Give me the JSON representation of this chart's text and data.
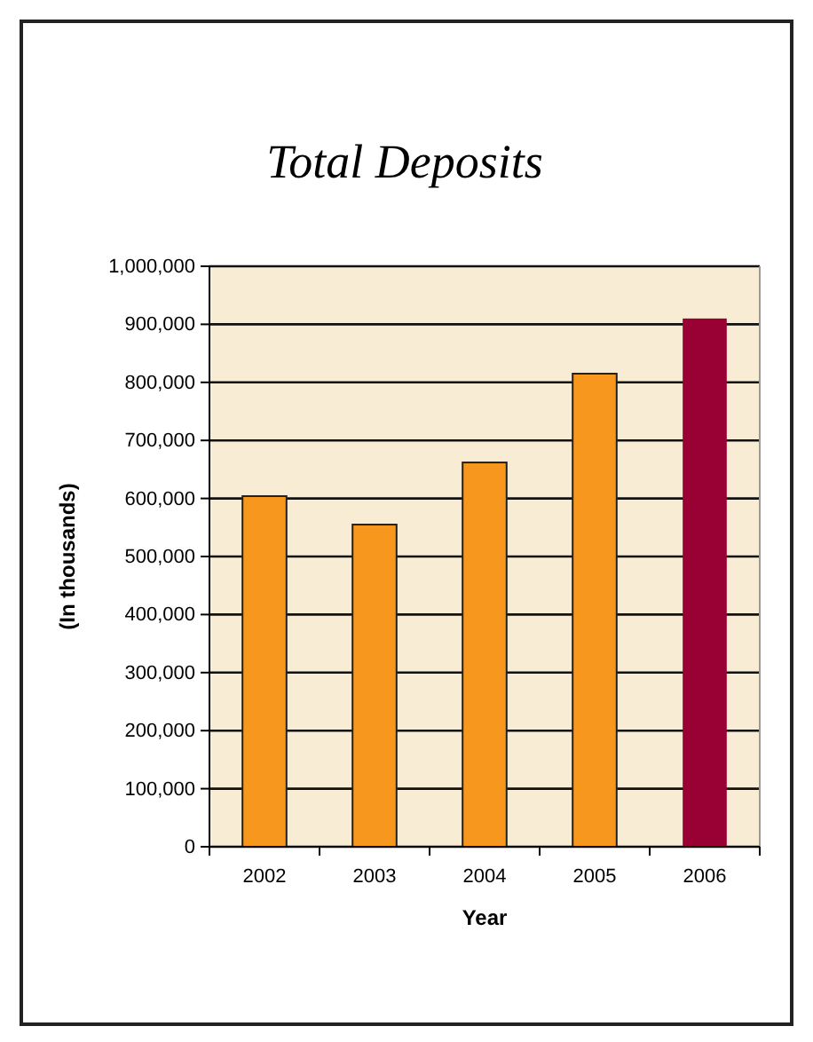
{
  "chart_data": {
    "type": "bar",
    "title": "Total Deposits",
    "xlabel": "Year",
    "ylabel": "(In thousands)",
    "categories": [
      "2002",
      "2003",
      "2004",
      "2005",
      "2006"
    ],
    "values": [
      604000,
      555000,
      662000,
      815000,
      910000
    ],
    "colors": [
      "#f7971e",
      "#f7971e",
      "#f7971e",
      "#f7971e",
      "#990033"
    ],
    "ylim": [
      0,
      1000000
    ],
    "yticks": [
      {
        "value": 0,
        "label": "0"
      },
      {
        "value": 100000,
        "label": "100,000"
      },
      {
        "value": 200000,
        "label": "200,000"
      },
      {
        "value": 300000,
        "label": "300,000"
      },
      {
        "value": 400000,
        "label": "400,000"
      },
      {
        "value": 500000,
        "label": "500,000"
      },
      {
        "value": 600000,
        "label": "600,000"
      },
      {
        "value": 700000,
        "label": "700,000"
      },
      {
        "value": 800000,
        "label": "800,000"
      },
      {
        "value": 900000,
        "label": "900,000"
      },
      {
        "value": 1000000,
        "label": "1,000,000"
      }
    ],
    "grid": "y"
  }
}
